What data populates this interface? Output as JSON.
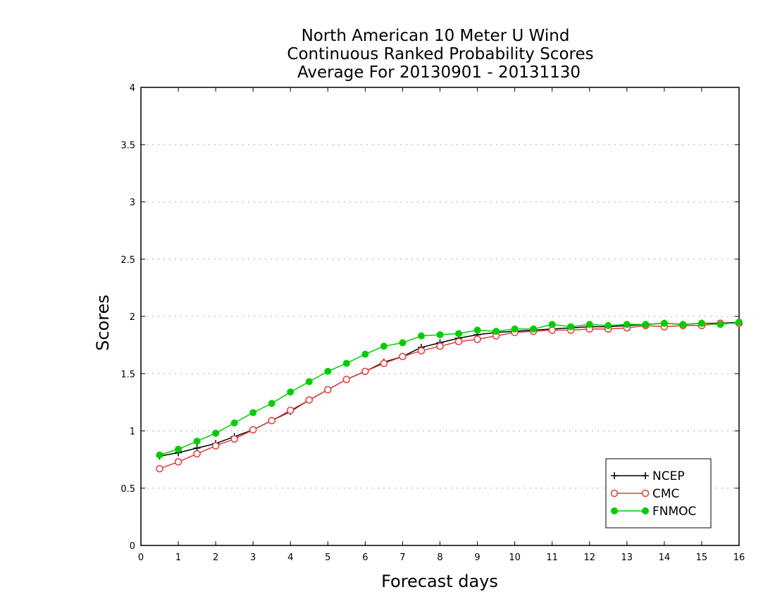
{
  "chart_data": {
    "type": "line",
    "title_lines": [
      "North American 10 Meter U Wind",
      "Continuous Ranked Probability Scores",
      "Average For 20130901 - 20131130"
    ],
    "xlabel": "Forecast days",
    "ylabel": "Scores",
    "xlim": [
      0,
      16
    ],
    "ylim": [
      0,
      4
    ],
    "x_ticks": [
      "0",
      "1",
      "2",
      "3",
      "4",
      "5",
      "6",
      "7",
      "8",
      "9",
      "10",
      "11",
      "12",
      "13",
      "14",
      "15",
      "16"
    ],
    "y_ticks": [
      "0",
      "0.5",
      "1",
      "1.5",
      "2",
      "2.5",
      "3",
      "3.5",
      "4"
    ],
    "grid": "horizontal dotted",
    "legend_position": "bottom-right",
    "x": [
      0.5,
      1,
      1.5,
      2,
      2.5,
      3,
      3.5,
      4,
      4.5,
      5,
      5.5,
      6,
      6.5,
      7,
      7.5,
      8,
      8.5,
      9,
      9.5,
      10,
      10.5,
      11,
      11.5,
      12,
      12.5,
      13,
      13.5,
      14,
      14.5,
      15,
      15.5,
      16
    ],
    "series": [
      {
        "name": "NCEP",
        "color": "#000000",
        "marker": "plus",
        "values": [
          0.78,
          0.81,
          0.85,
          0.89,
          0.95,
          1.01,
          1.09,
          1.17,
          1.27,
          1.36,
          1.45,
          1.52,
          1.6,
          1.65,
          1.73,
          1.77,
          1.81,
          1.84,
          1.86,
          1.87,
          1.88,
          1.89,
          1.9,
          1.91,
          1.91,
          1.92,
          1.93,
          1.94,
          1.93,
          1.94,
          1.94,
          1.95
        ]
      },
      {
        "name": "CMC",
        "color": "#e03c3c",
        "marker": "open-circle",
        "values": [
          0.67,
          0.73,
          0.8,
          0.87,
          0.93,
          1.01,
          1.09,
          1.18,
          1.27,
          1.36,
          1.45,
          1.52,
          1.59,
          1.65,
          1.7,
          1.74,
          1.78,
          1.8,
          1.83,
          1.86,
          1.87,
          1.88,
          1.88,
          1.89,
          1.89,
          1.9,
          1.92,
          1.91,
          1.92,
          1.92,
          1.94,
          1.94
        ]
      },
      {
        "name": "FNMOC",
        "color": "#00cc00",
        "marker": "filled-circle",
        "values": [
          0.79,
          0.84,
          0.91,
          0.98,
          1.07,
          1.16,
          1.24,
          1.34,
          1.43,
          1.52,
          1.59,
          1.67,
          1.74,
          1.77,
          1.83,
          1.84,
          1.85,
          1.88,
          1.87,
          1.89,
          1.89,
          1.93,
          1.91,
          1.93,
          1.92,
          1.93,
          1.93,
          1.94,
          1.93,
          1.94,
          1.93,
          1.95
        ]
      }
    ]
  }
}
